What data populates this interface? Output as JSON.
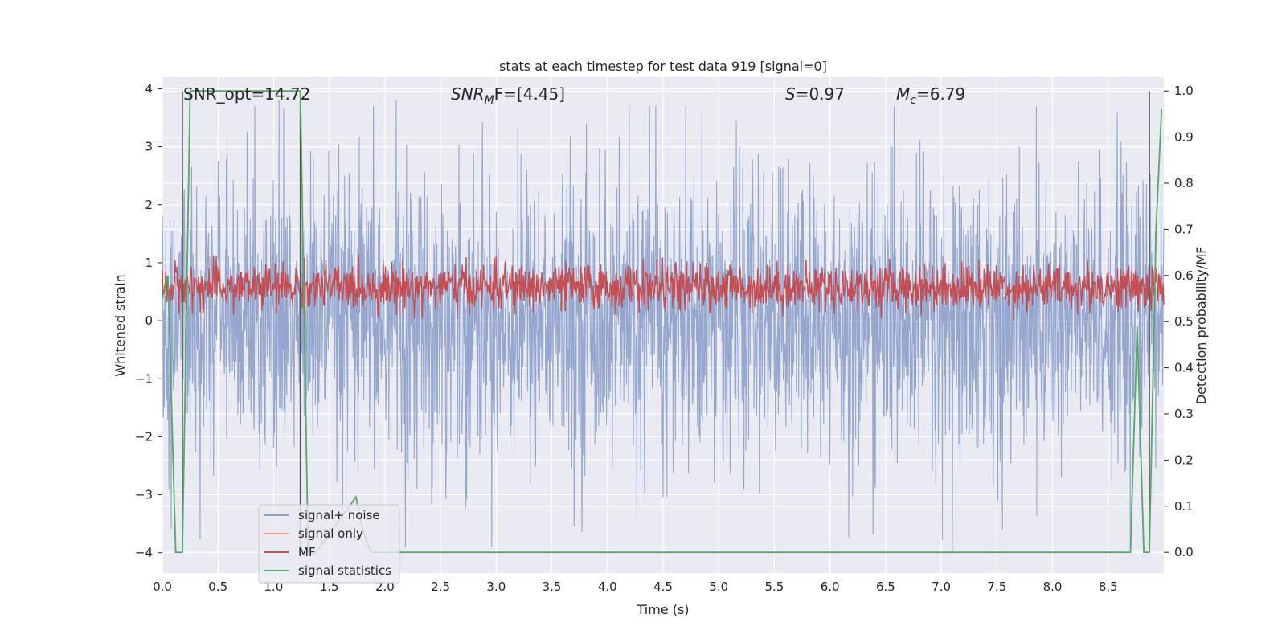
{
  "chart_data": {
    "type": "line",
    "title": "stats at each timestep for test data 919 [signal=0]",
    "xlabel": "Time (s)",
    "ylabel_left": "Whitened strain",
    "ylabel_right": "Detection probability/MF",
    "xlim": [
      0.0,
      9.0
    ],
    "ylim_left": [
      -4.35,
      4.2
    ],
    "ylim_right": [
      -0.045,
      1.03
    ],
    "x_ticks": [
      "0.0",
      "0.5",
      "1.0",
      "1.5",
      "2.0",
      "2.5",
      "3.0",
      "3.5",
      "4.0",
      "4.5",
      "5.0",
      "5.5",
      "6.0",
      "6.5",
      "7.0",
      "7.5",
      "8.0",
      "8.5"
    ],
    "y_left_ticks": [
      "4",
      "3",
      "2",
      "1",
      "0",
      "−1",
      "−2",
      "−3",
      "−4"
    ],
    "y_right_ticks": [
      "1.0",
      "0.9",
      "0.8",
      "0.7",
      "0.6",
      "0.5",
      "0.4",
      "0.3",
      "0.2",
      "0.1",
      "0.0"
    ],
    "grid": true,
    "annotations": {
      "snr_opt": "SNR_opt=14.72",
      "snr_mf_sym": "SNR",
      "snr_mf_sub": "M",
      "snr_mf_rest": "F=[4.45]",
      "s_sym": "S",
      "s_val": "=0.97",
      "mc_sym": "M",
      "mc_sub": "c",
      "mc_val": "=6.79"
    },
    "legend": {
      "position": "lower-left",
      "entries": [
        {
          "label": "signal+ noise",
          "color": "#8da0cb"
        },
        {
          "label": "signal only",
          "color": "#f2a07b"
        },
        {
          "label": "MF",
          "color": "#c44e52"
        },
        {
          "label": "signal statistics",
          "color": "#55a868"
        }
      ]
    },
    "series": [
      {
        "name": "signal+ noise",
        "axis": "left",
        "description": "whitened strain noise, roughly gaussian, envelope about ±2.2 with spikes up to 3.8 and down to -4.0",
        "amplitude_envelope": 2.2,
        "extremes": [
          [
            1.05,
            3.8
          ],
          [
            2.1,
            3.8
          ],
          [
            4.85,
            3.6
          ],
          [
            7.1,
            -4.0
          ],
          [
            3.7,
            -3.55
          ],
          [
            7.55,
            -3.6
          ]
        ]
      },
      {
        "name": "signal only",
        "axis": "left",
        "description": "zero (no signal injected)",
        "values": []
      },
      {
        "name": "MF",
        "axis": "right",
        "description": "matched-filter output oscillating between about 0.52 and 0.63",
        "range": [
          0.52,
          0.63
        ]
      },
      {
        "name": "signal statistics",
        "axis": "right",
        "x": [
          0.0,
          0.05,
          0.12,
          0.18,
          0.25,
          1.24,
          1.31,
          1.38,
          1.74,
          1.8,
          1.87,
          8.7,
          8.76,
          8.82,
          8.87,
          8.93,
          8.98
        ],
        "y": [
          0.55,
          0.6,
          0.0,
          0.0,
          1.0,
          1.0,
          0.0,
          0.0,
          0.12,
          0.05,
          0.0,
          0.0,
          0.49,
          0.0,
          0.0,
          0.7,
          0.96
        ]
      }
    ],
    "vertical_markers_s": [
      0.18,
      1.24,
      8.87
    ]
  }
}
